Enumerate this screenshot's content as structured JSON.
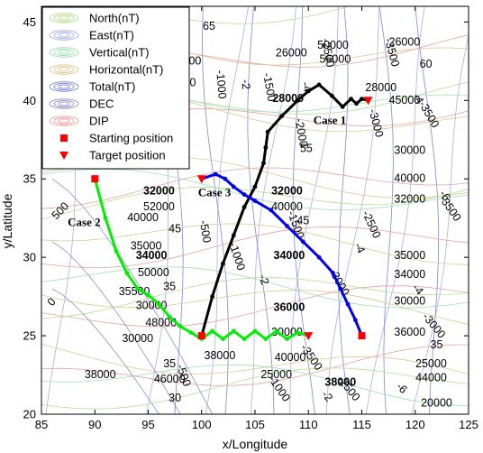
{
  "chart_data": {
    "type": "line",
    "xlabel": "x/Longitude",
    "ylabel": "y/Latitude",
    "xlim": [
      85,
      125
    ],
    "ylim": [
      20,
      46
    ],
    "xticks": [
      85,
      90,
      95,
      100,
      105,
      110,
      115,
      120,
      125
    ],
    "yticks": [
      20,
      25,
      30,
      35,
      40,
      45
    ],
    "grid": false,
    "legend_position": "top-left",
    "legend": [
      {
        "label": "North(nT)",
        "kind": "ellipse",
        "color": "#b7e08c"
      },
      {
        "label": "East(nT)",
        "kind": "ellipse",
        "color": "#a9aee8"
      },
      {
        "label": "Vertical(nT)",
        "kind": "ellipse",
        "color": "#9fe0b4"
      },
      {
        "label": "Horizontal(nT)",
        "kind": "ellipse",
        "color": "#e0c88a"
      },
      {
        "label": "Total(nT)",
        "kind": "ellipse",
        "color": "#7d86d6"
      },
      {
        "label": "DEC",
        "kind": "ellipse",
        "color": "#8f8fc8"
      },
      {
        "label": "DIP",
        "kind": "ellipse",
        "color": "#e8a0a0"
      },
      {
        "label": "Starting position",
        "kind": "square",
        "color": "#ff0000"
      },
      {
        "label": "Target position",
        "kind": "triangle",
        "color": "#ff0000"
      }
    ],
    "series": [
      {
        "name": "Case 1",
        "color": "#000000",
        "points": [
          [
            100.0,
            25.0
          ],
          [
            101.0,
            27.5
          ],
          [
            102.0,
            29.6
          ],
          [
            103.0,
            31.4
          ],
          [
            104.0,
            33.2
          ],
          [
            105.0,
            34.5
          ],
          [
            105.8,
            36.0
          ],
          [
            106.0,
            37.0
          ],
          [
            106.2,
            38.0
          ],
          [
            107.5,
            39.0
          ],
          [
            109.0,
            40.0
          ],
          [
            110.0,
            40.6
          ],
          [
            111.0,
            41.0
          ],
          [
            112.2,
            40.3
          ],
          [
            113.2,
            39.6
          ],
          [
            114.0,
            40.1
          ],
          [
            114.5,
            39.8
          ],
          [
            115.0,
            40.1
          ],
          [
            115.6,
            40.0
          ]
        ],
        "start": [
          100.0,
          25.0
        ],
        "target": [
          115.6,
          40.0
        ]
      },
      {
        "name": "Case 2",
        "color": "#00ee00",
        "points": [
          [
            90.0,
            35.0
          ],
          [
            91.0,
            32.5
          ],
          [
            92.0,
            30.4
          ],
          [
            93.0,
            29.0
          ],
          [
            94.0,
            28.0
          ],
          [
            95.0,
            27.6
          ],
          [
            96.0,
            27.0
          ],
          [
            97.0,
            26.2
          ],
          [
            98.0,
            25.6
          ],
          [
            99.0,
            25.2
          ],
          [
            100.0,
            24.8
          ],
          [
            101.0,
            25.3
          ],
          [
            102.0,
            24.8
          ],
          [
            103.0,
            25.3
          ],
          [
            104.0,
            24.8
          ],
          [
            105.0,
            25.3
          ],
          [
            106.0,
            24.8
          ],
          [
            107.0,
            25.3
          ],
          [
            108.0,
            24.8
          ],
          [
            109.0,
            25.2
          ],
          [
            110.0,
            25.0
          ]
        ],
        "start": [
          90.0,
          35.0
        ],
        "target": [
          110.0,
          25.0
        ]
      },
      {
        "name": "Case 3",
        "color": "#0000ee",
        "points": [
          [
            115.0,
            25.0
          ],
          [
            114.4,
            26.0
          ],
          [
            113.7,
            27.0
          ],
          [
            113.0,
            28.0
          ],
          [
            112.3,
            29.0
          ],
          [
            111.0,
            30.0
          ],
          [
            109.5,
            31.0
          ],
          [
            108.0,
            32.0
          ],
          [
            106.5,
            33.0
          ],
          [
            105.0,
            33.6
          ],
          [
            104.0,
            34.0
          ],
          [
            103.0,
            34.5
          ],
          [
            102.2,
            35.0
          ],
          [
            101.3,
            35.3
          ],
          [
            100.0,
            35.0
          ]
        ],
        "start": [
          115.0,
          25.0
        ],
        "target": [
          100.0,
          35.0
        ]
      }
    ],
    "case_labels": [
      {
        "text": "Case 1",
        "x": 112.0,
        "y": 38.5
      },
      {
        "text": "Case 2",
        "x": 89.0,
        "y": 32.0
      },
      {
        "text": "Case 3",
        "x": 101.2,
        "y": 33.9
      }
    ],
    "contour_labels": [
      {
        "text": "65",
        "x": 100.7,
        "y": 44.5,
        "bold": false
      },
      {
        "text": "26000",
        "x": 108.4,
        "y": 42.8,
        "bold": false
      },
      {
        "text": "26000",
        "x": 119.0,
        "y": 43.5,
        "bold": false
      },
      {
        "text": "50000",
        "x": 112.3,
        "y": 43.3,
        "bold": false
      },
      {
        "text": "56000",
        "x": 112.5,
        "y": 42.4,
        "bold": false
      },
      {
        "text": "50000",
        "x": 98.5,
        "y": 42.3,
        "bold": false
      },
      {
        "text": "56000",
        "x": 98.0,
        "y": 40.9,
        "bold": false
      },
      {
        "text": "60",
        "x": 121.0,
        "y": 42.1,
        "bold": false
      },
      {
        "text": "28000",
        "x": 108.1,
        "y": 39.9,
        "bold": true
      },
      {
        "text": "28000",
        "x": 116.8,
        "y": 40.6,
        "bold": false
      },
      {
        "text": "45000",
        "x": 119.0,
        "y": 39.8,
        "bold": false
      },
      {
        "text": "55",
        "x": 109.8,
        "y": 36.7,
        "bold": false
      },
      {
        "text": "30000",
        "x": 119.5,
        "y": 36.6,
        "bold": false
      },
      {
        "text": "40000",
        "x": 119.5,
        "y": 34.8,
        "bold": false
      },
      {
        "text": "32000",
        "x": 96.0,
        "y": 34.0,
        "bold": true
      },
      {
        "text": "52000",
        "x": 96.0,
        "y": 33.0,
        "bold": false
      },
      {
        "text": "40000",
        "x": 94.5,
        "y": 32.3,
        "bold": false
      },
      {
        "text": "45",
        "x": 97.5,
        "y": 31.6,
        "bold": false
      },
      {
        "text": "32000",
        "x": 108.0,
        "y": 34.0,
        "bold": true
      },
      {
        "text": "40000",
        "x": 108.0,
        "y": 33.0,
        "bold": false
      },
      {
        "text": "45",
        "x": 109.5,
        "y": 32.1,
        "bold": false
      },
      {
        "text": "32000",
        "x": 119.5,
        "y": 33.5,
        "bold": false
      },
      {
        "text": "34000",
        "x": 95.3,
        "y": 29.9,
        "bold": true
      },
      {
        "text": "50000",
        "x": 95.5,
        "y": 28.8,
        "bold": false
      },
      {
        "text": "35",
        "x": 97.0,
        "y": 27.9,
        "bold": false
      },
      {
        "text": "34000",
        "x": 108.2,
        "y": 29.9,
        "bold": true
      },
      {
        "text": "35000",
        "x": 119.5,
        "y": 29.9,
        "bold": false
      },
      {
        "text": "34000",
        "x": 119.5,
        "y": 28.7,
        "bold": false
      },
      {
        "text": "35500",
        "x": 93.7,
        "y": 27.6,
        "bold": false
      },
      {
        "text": "30000",
        "x": 95.3,
        "y": 26.7,
        "bold": false
      },
      {
        "text": "48000",
        "x": 96.2,
        "y": 25.6,
        "bold": false
      },
      {
        "text": "30000",
        "x": 94.0,
        "y": 24.6,
        "bold": false
      },
      {
        "text": "36000",
        "x": 108.2,
        "y": 26.6,
        "bold": true
      },
      {
        "text": "30000",
        "x": 108.0,
        "y": 25.0,
        "bold": false
      },
      {
        "text": "30000",
        "x": 119.5,
        "y": 27.0,
        "bold": false
      },
      {
        "text": "36000",
        "x": 119.5,
        "y": 25.0,
        "bold": false
      },
      {
        "text": "35",
        "x": 122.0,
        "y": 24.2,
        "bold": false
      },
      {
        "text": "25000",
        "x": 121.5,
        "y": 23.0,
        "bold": false
      },
      {
        "text": "44000",
        "x": 121.5,
        "y": 22.1,
        "bold": false
      },
      {
        "text": "20000",
        "x": 122.0,
        "y": 20.5,
        "bold": false
      },
      {
        "text": "38000",
        "x": 90.5,
        "y": 22.3,
        "bold": false
      },
      {
        "text": "35",
        "x": 97.0,
        "y": 23.0,
        "bold": false
      },
      {
        "text": "46000",
        "x": 97.0,
        "y": 22.0,
        "bold": false
      },
      {
        "text": "30",
        "x": 97.5,
        "y": 20.8,
        "bold": false
      },
      {
        "text": "38000",
        "x": 101.7,
        "y": 23.5,
        "bold": false
      },
      {
        "text": "40000",
        "x": 108.3,
        "y": 23.4,
        "bold": false
      },
      {
        "text": "25000",
        "x": 107.0,
        "y": 22.3,
        "bold": false
      },
      {
        "text": "38000",
        "x": 113.0,
        "y": 21.8,
        "bold": true
      },
      {
        "text": "35000",
        "x": 94.8,
        "y": 30.5,
        "bold": false
      }
    ],
    "rotated_labels": [
      {
        "text": "0",
        "x": 86.2,
        "y": 27.0,
        "angle": -48
      },
      {
        "text": "500",
        "x": 87.0,
        "y": 32.8,
        "angle": -45
      },
      {
        "text": "-500",
        "x": 100.0,
        "y": 31.6,
        "angle": 80
      },
      {
        "text": "-1000",
        "x": 103.0,
        "y": 30.0,
        "angle": 72
      },
      {
        "text": "-2",
        "x": 105.5,
        "y": 28.5,
        "angle": 72
      },
      {
        "text": "-1000",
        "x": 101.5,
        "y": 41.0,
        "angle": 85
      },
      {
        "text": "-2",
        "x": 103.8,
        "y": 41.0,
        "angle": 85
      },
      {
        "text": "-1500",
        "x": 106.0,
        "y": 40.8,
        "angle": 80
      },
      {
        "text": "-4",
        "x": 109.5,
        "y": 40.8,
        "angle": 75
      },
      {
        "text": "-2000",
        "x": 109.0,
        "y": 37.9,
        "angle": 80
      },
      {
        "text": "-2500",
        "x": 111.5,
        "y": 43.0,
        "angle": 80
      },
      {
        "text": "-3000",
        "x": 116.0,
        "y": 38.5,
        "angle": 75
      },
      {
        "text": "-3500",
        "x": 117.5,
        "y": 43.0,
        "angle": 75
      },
      {
        "text": "-2500",
        "x": 115.6,
        "y": 32.0,
        "angle": 65
      },
      {
        "text": "-4",
        "x": 114.5,
        "y": 30.5,
        "angle": 65
      },
      {
        "text": "-3000",
        "x": 112.6,
        "y": 28.3,
        "angle": 60
      },
      {
        "text": "-3500",
        "x": 110.0,
        "y": 23.5,
        "angle": 55
      },
      {
        "text": "-1000",
        "x": 107.0,
        "y": 21.5,
        "angle": 55
      },
      {
        "text": "-2",
        "x": 111.5,
        "y": 21.0,
        "angle": 50
      },
      {
        "text": "-2500",
        "x": 113.5,
        "y": 21.5,
        "angle": 50
      },
      {
        "text": "-3000",
        "x": 121.5,
        "y": 25.5,
        "angle": 50
      },
      {
        "text": "-4",
        "x": 120.0,
        "y": 27.8,
        "angle": 50
      },
      {
        "text": "-3500",
        "x": 123.0,
        "y": 33.0,
        "angle": 55
      },
      {
        "text": "-6",
        "x": 122.5,
        "y": 33.8,
        "angle": 55
      },
      {
        "text": "-500",
        "x": 98.0,
        "y": 22.4,
        "angle": 70
      },
      {
        "text": "-6",
        "x": 118.5,
        "y": 21.5,
        "angle": 45
      },
      {
        "text": "-1500",
        "x": 108.5,
        "y": 32.0,
        "angle": 70
      },
      {
        "text": "-3500",
        "x": 121.0,
        "y": 39.0,
        "angle": 60
      },
      {
        "text": "-4",
        "x": 120.0,
        "y": 40.0,
        "angle": 60
      }
    ]
  }
}
